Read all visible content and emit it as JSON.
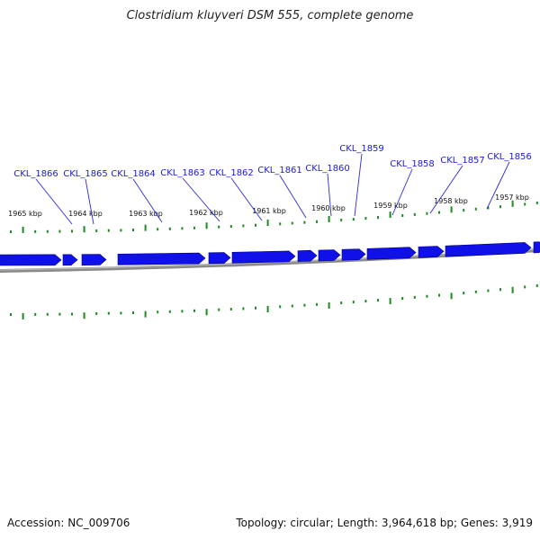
{
  "title": "Clostridium kluyveri DSM 555, complete genome",
  "footer": {
    "accession": "Accession: NC_009706",
    "summary": "Topology: circular; Length: 3,964,618 bp; Genes: 3,919"
  },
  "colors": {
    "gene_fill": "#1010e8",
    "gene_edge": "#000080",
    "label": "#1a1adb",
    "leader": "#2a2ae0",
    "tick": "#1e8a1e",
    "backbone": "#8a8a8a"
  },
  "kbp_labels": [
    "1965 kbp",
    "1964 kbp",
    "1963 kbp",
    "1962 kbp",
    "1961 kbp",
    "1960 kbp",
    "1959 kbp",
    "1958 kbp",
    "1957 kbp"
  ],
  "genes": [
    {
      "label": "CKL_1866",
      "strand": "+"
    },
    {
      "label": "CKL_1865",
      "strand": "+"
    },
    {
      "label": "CKL_1864",
      "strand": "+"
    },
    {
      "label": "CKL_1863",
      "strand": "+"
    },
    {
      "label": "CKL_1862",
      "strand": "+"
    },
    {
      "label": "CKL_1861",
      "strand": "+"
    },
    {
      "label": "CKL_1860",
      "strand": "+"
    },
    {
      "label": "CKL_1859",
      "strand": "+"
    },
    {
      "label": "CKL_1858",
      "strand": "+"
    },
    {
      "label": "CKL_1857",
      "strand": "+"
    },
    {
      "label": "CKL_1856",
      "strand": "+"
    }
  ]
}
